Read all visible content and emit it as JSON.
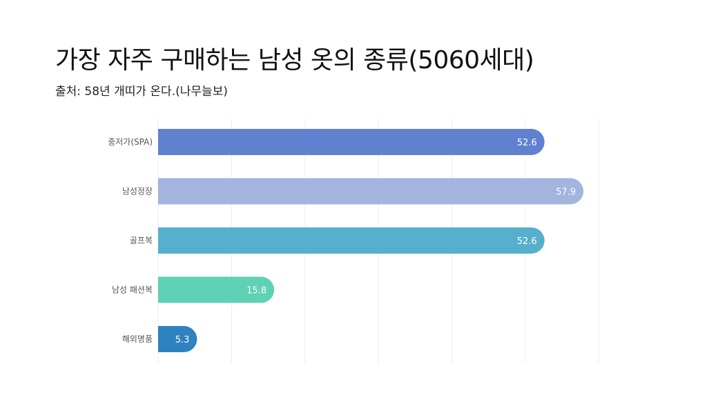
{
  "header": {
    "title": "가장 자주 구매하는 남성 옷의 종류(5060세대)",
    "subtitle": "출처: 58년 개띠가 온다.(나무늘보)"
  },
  "chart_data": {
    "type": "bar",
    "orientation": "horizontal",
    "title": "가장 자주 구매하는 남성 옷의 종류(5060세대)",
    "subtitle": "출처: 58년 개띠가 온다.(나무늘보)",
    "categories": [
      "중저가(SPA)",
      "남성정장",
      "골프복",
      "남성 패션복",
      "해외명품"
    ],
    "values": [
      52.6,
      57.9,
      52.6,
      15.8,
      5.3
    ],
    "colors": [
      "#6080d0",
      "#a3b4de",
      "#56afcc",
      "#5fd1b4",
      "#2f82c0"
    ],
    "xlim": [
      0,
      60
    ],
    "grid": true,
    "legend": "none",
    "data_labels": true
  }
}
